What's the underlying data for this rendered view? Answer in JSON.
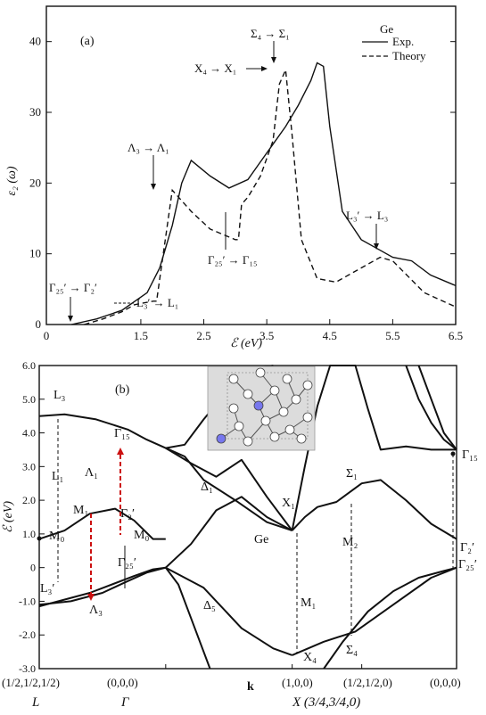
{
  "chart_data": [
    {
      "type": "line",
      "panel_label": "(a)",
      "material": "Ge",
      "xlabel": "ℰ (eV)",
      "ylabel": "ε₂ (ω)",
      "xlim": [
        0,
        6.5
      ],
      "ylim": [
        0,
        45
      ],
      "x_ticks": [
        "0",
        "1.5",
        "2.5",
        "3.5",
        "4.5",
        "5.5",
        "6.5"
      ],
      "x_tick_values": [
        0,
        1.5,
        2.5,
        3.5,
        4.5,
        5.5,
        6.5
      ],
      "y_ticks": [
        "0",
        "10",
        "20",
        "30",
        "40"
      ],
      "y_tick_values": [
        0,
        10,
        20,
        30,
        40
      ],
      "legend_position": "top-right",
      "series": [
        {
          "name": "Exp.",
          "style": "solid",
          "x": [
            0.4,
            0.8,
            1.2,
            1.6,
            1.8,
            2.0,
            2.15,
            2.3,
            2.6,
            2.9,
            3.2,
            3.4,
            3.6,
            3.8,
            4.0,
            4.2,
            4.3,
            4.4,
            4.5,
            4.7,
            5.0,
            5.3,
            5.5,
            5.8,
            6.1,
            6.5
          ],
          "y": [
            0,
            0.8,
            2.0,
            4.5,
            8.0,
            14.0,
            20.0,
            23.2,
            21.0,
            19.3,
            20.5,
            23.0,
            25.5,
            28.0,
            31.0,
            34.5,
            37.0,
            36.5,
            28.0,
            16.0,
            12.0,
            10.5,
            9.5,
            9.0,
            7.0,
            5.5
          ]
        },
        {
          "name": "Theory",
          "style": "dashed",
          "x": [
            0.6,
            0.9,
            1.2,
            1.4,
            1.7,
            1.75,
            2.0,
            2.3,
            2.6,
            3.0,
            3.05,
            3.1,
            3.2,
            3.4,
            3.6,
            3.7,
            3.8,
            3.9,
            4.05,
            4.3,
            4.6,
            5.0,
            5.3,
            5.5,
            6.0,
            6.5
          ],
          "y": [
            0,
            0.8,
            1.8,
            2.8,
            3.3,
            3.3,
            19.0,
            16.0,
            13.5,
            12.0,
            12.0,
            17.0,
            18.0,
            21.0,
            26.0,
            34.0,
            36.0,
            27.0,
            12.0,
            6.5,
            6.0,
            8.0,
            9.5,
            9.0,
            4.5,
            2.5
          ]
        }
      ],
      "annotations": [
        {
          "text": "Λ₃ → Λ₁"
        },
        {
          "text": "Σ₄ → Σ₁"
        },
        {
          "text": "X₄ → X₁"
        },
        {
          "text": "Γ₂₅′ → Γ₂′"
        },
        {
          "text": "L₃′ → L₁"
        },
        {
          "text": "Γ₂₅′ → Γ₁₅"
        },
        {
          "text": "L₃′ → L₃"
        }
      ]
    },
    {
      "type": "line",
      "panel_label": "(b)",
      "material": "Ge",
      "xlabel": "k",
      "ylabel": "ℰ (eV)",
      "ylim": [
        -3.0,
        6.0
      ],
      "y_ticks": [
        "6.0",
        "5.0",
        "4.0",
        "3.0",
        "2.0",
        "1.0",
        "0",
        "-1.0",
        "-2.0",
        "-3.0"
      ],
      "y_tick_values": [
        6,
        5,
        4,
        3,
        2,
        1,
        0,
        -1,
        -2,
        -3
      ],
      "x_points": [
        {
          "label": "(1/2,1/2,1/2)",
          "symbol": "L",
          "k": 0
        },
        {
          "label": "(0,0,0)",
          "symbol": "Γ",
          "k": 1
        },
        {
          "label": "(1,0,0)",
          "symbol": "X (3/4,3/4,0)",
          "k": 2
        },
        {
          "label": "(1/2,1/2,0)",
          "symbol": "",
          "k": 2.55
        },
        {
          "label": "(0,0,0)",
          "symbol": "",
          "k": 3.3
        }
      ],
      "xlim": [
        0,
        3.3
      ],
      "series": [
        {
          "x": [
            0,
            0.2,
            0.45,
            0.7,
            0.85,
            1.0
          ],
          "y": [
            4.5,
            4.55,
            4.4,
            4.1,
            3.8,
            3.55
          ]
        },
        {
          "x": [
            1.0,
            1.15,
            1.3,
            1.5,
            1.7,
            1.85
          ],
          "y": [
            3.55,
            3.65,
            4.4,
            5.3,
            5.9,
            6.0
          ]
        },
        {
          "x": [
            0,
            0.25,
            0.5,
            0.7,
            0.85,
            1.0,
            1.2,
            1.4,
            1.6,
            1.8,
            2.0
          ],
          "y": [
            -1.1,
            -1.0,
            -0.75,
            -0.4,
            -0.15,
            0.0,
            0.7,
            1.7,
            2.1,
            1.5,
            1.1
          ]
        },
        {
          "x": [
            1.0,
            1.15,
            1.3,
            1.55,
            1.8,
            2.0
          ],
          "y": [
            3.55,
            3.3,
            2.6,
            2.0,
            1.35,
            1.1
          ]
        },
        {
          "x": [
            1.0,
            1.2,
            1.4,
            1.6,
            1.8,
            2.0
          ],
          "y": [
            3.55,
            3.1,
            2.7,
            3.2,
            2.1,
            1.1
          ]
        },
        {
          "x": [
            0,
            0.2,
            0.4,
            0.6,
            0.75,
            0.9,
            1.0
          ],
          "y": [
            0.85,
            1.1,
            1.6,
            1.75,
            1.4,
            0.85,
            0.85
          ]
        },
        {
          "x": [
            2.0,
            2.1,
            2.2,
            2.35,
            2.55,
            2.7,
            2.9,
            3.1,
            3.3
          ],
          "y": [
            1.1,
            1.5,
            1.8,
            1.95,
            2.5,
            2.6,
            2.0,
            1.3,
            0.85
          ]
        },
        {
          "x": [
            1.0,
            1.3,
            1.6,
            1.85,
            2.0
          ],
          "y": [
            0.0,
            -0.6,
            -1.8,
            -2.4,
            -2.6
          ]
        },
        {
          "x": [
            2.0,
            2.25,
            2.5,
            2.8,
            3.1,
            3.3
          ],
          "y": [
            -2.6,
            -2.2,
            -1.9,
            -1.1,
            -0.3,
            0.0
          ]
        },
        {
          "x": [
            0,
            0.4,
            0.75,
            0.9,
            1.0,
            1.1,
            1.2,
            1.35
          ],
          "y": [
            -1.15,
            -0.75,
            -0.25,
            -0.05,
            0.0,
            -0.5,
            -1.5,
            -3.0
          ]
        },
        {
          "x": [
            2.0,
            2.1,
            2.2,
            2.3,
            2.5,
            2.6,
            2.7,
            2.9,
            3.1,
            3.3
          ],
          "y": [
            1.1,
            3.0,
            4.8,
            6.0,
            6.0,
            4.7,
            3.5,
            3.6,
            3.5,
            3.5
          ]
        },
        {
          "x": [
            2.9,
            3.0,
            3.1,
            3.2,
            3.3
          ],
          "y": [
            6.0,
            5.0,
            4.3,
            3.8,
            3.5
          ]
        },
        {
          "x": [
            3.0,
            3.1,
            3.2,
            3.3
          ],
          "y": [
            6.0,
            5.0,
            4.0,
            3.5
          ]
        },
        {
          "x": [
            2.25,
            2.4,
            2.6,
            2.8,
            3.0,
            3.2,
            3.3
          ],
          "y": [
            -3.0,
            -2.2,
            -1.3,
            -0.7,
            -0.3,
            -0.1,
            0.0
          ]
        }
      ],
      "labels": [
        "L₃",
        "Γ₁₅",
        "L₁",
        "Λ₁",
        "M₁",
        "M₀",
        "Γ₂′",
        "M₀",
        "L₃′",
        "Λ₃",
        "Γ₂₅′",
        "Δ₁",
        "Δ₅",
        "Ge",
        "X₁",
        "M₁",
        "X₄",
        "Σ₁",
        "M₂",
        "Σ₄",
        "Γ₁₅",
        "Γ₂′",
        "Γ₂₅′"
      ],
      "transitions_red": [
        "L₃′ → L₁ (M₁)",
        "Γ₂₅′ → Γ₁₅"
      ]
    }
  ],
  "legend": {
    "title": "Ge",
    "exp": "Exp.",
    "theory": "Theory"
  },
  "colors": {
    "ink": "#111111",
    "red": "#cc1111",
    "inset_bg": "#dcdcdc",
    "atom_blue": "#7777ee"
  }
}
